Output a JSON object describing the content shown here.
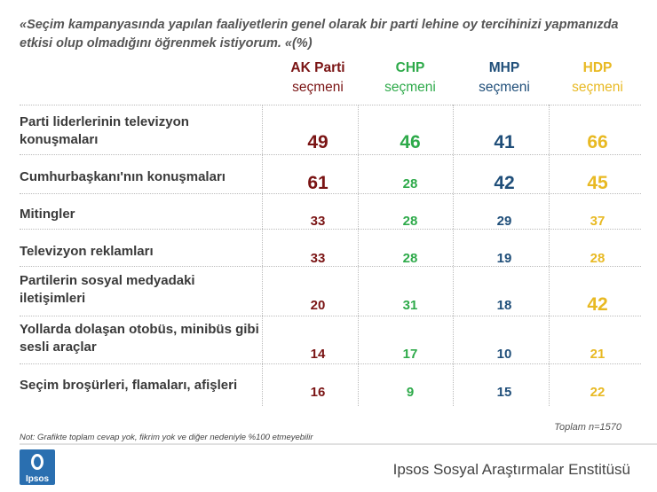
{
  "question": "«Seçim kampanyasında yapılan faaliyetlerin genel olarak bir parti lehine oy tercihinizi yapmanızda etkisi olup olmadığını öğrenmek istiyorum. «(%)",
  "colors": {
    "akp": "#7a1414",
    "chp": "#2eaa4a",
    "mhp": "#1f4e79",
    "hdp": "#e8b923"
  },
  "chart_data": {
    "type": "table",
    "columns": [
      {
        "line1": "AK Parti",
        "line2": "seçmeni",
        "key": "akp"
      },
      {
        "line1": "CHP",
        "line2": "seçmeni",
        "key": "chp"
      },
      {
        "line1": "MHP",
        "line2": "seçmeni",
        "key": "mhp"
      },
      {
        "line1": "HDP",
        "line2": "seçmeni",
        "key": "hdp"
      }
    ],
    "rows": [
      {
        "label": "Parti liderlerinin televizyon konuşmaları",
        "values": [
          49,
          46,
          41,
          66
        ],
        "emph": [
          true,
          true,
          true,
          true
        ]
      },
      {
        "label": "Cumhurbaşkanı'nın konuşmaları",
        "values": [
          61,
          28,
          42,
          45
        ],
        "emph": [
          true,
          false,
          true,
          true
        ]
      },
      {
        "label": "Mitingler",
        "values": [
          33,
          28,
          29,
          37
        ],
        "emph": [
          false,
          false,
          false,
          false
        ]
      },
      {
        "label": "Televizyon reklamları",
        "values": [
          33,
          28,
          19,
          28
        ],
        "emph": [
          false,
          false,
          false,
          false
        ]
      },
      {
        "label": "Partilerin sosyal medyadaki iletişimleri",
        "values": [
          20,
          31,
          18,
          42
        ],
        "emph": [
          false,
          false,
          false,
          true
        ]
      },
      {
        "label": "Yollarda dolaşan otobüs, minibüs gibi sesli araçlar",
        "values": [
          14,
          17,
          10,
          21
        ],
        "emph": [
          false,
          false,
          false,
          false
        ]
      },
      {
        "label": "Seçim broşürleri, flamaları, afişleri",
        "values": [
          16,
          9,
          15,
          22
        ],
        "emph": [
          false,
          false,
          false,
          false
        ]
      }
    ]
  },
  "total": "Toplam n=1570",
  "note": "Not: Grafikte toplam cevap yok, fikrim yok ve diğer nedeniyle %100 etmeyebilir",
  "logo_text": "Ipsos",
  "institute": "Ipsos Sosyal Araştırmalar Enstitüsü"
}
